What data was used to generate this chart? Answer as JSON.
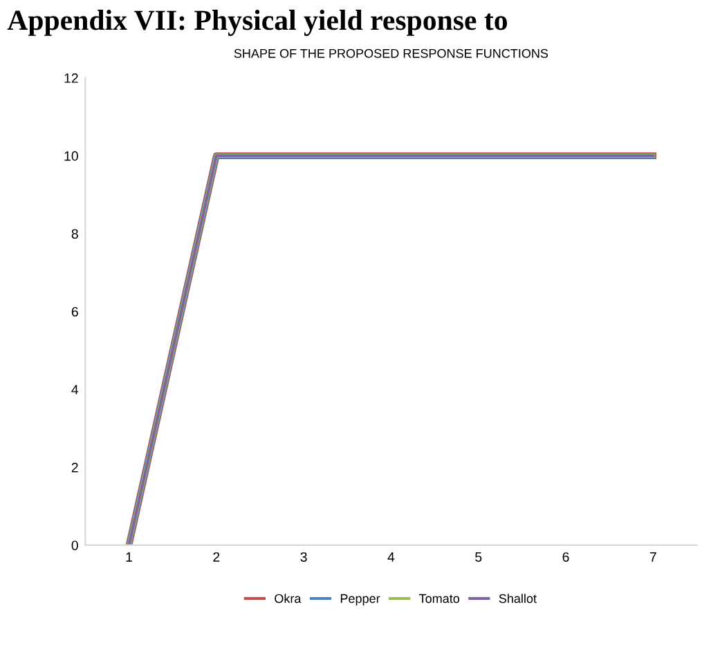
{
  "chart_data": {
    "type": "line",
    "title": "Appendix VII: Physical yield response to",
    "subtitle": "SHAPE OF THE PROPOSED RESPONSE FUNCTIONS",
    "categories": [
      "1",
      "2",
      "3",
      "4",
      "5",
      "6",
      "7"
    ],
    "series": [
      {
        "name": "Okra",
        "color": "#c0504d",
        "values": [
          0,
          10,
          10,
          10,
          10,
          10,
          10
        ]
      },
      {
        "name": "Pepper",
        "color": "#4f81bd",
        "values": [
          0,
          10,
          10,
          10,
          10,
          10,
          10
        ]
      },
      {
        "name": "Tomato",
        "color": "#9bbb59",
        "values": [
          0,
          10,
          10,
          10,
          10,
          10,
          10
        ]
      },
      {
        "name": "Shallot",
        "color": "#8064a2",
        "values": [
          0,
          10,
          10,
          10,
          10,
          10,
          10
        ]
      }
    ],
    "ylim": [
      0,
      12
    ],
    "yticks": [
      0,
      2,
      4,
      6,
      8,
      10,
      12
    ],
    "grid": false,
    "legend": "bottom",
    "marker": "none",
    "line_style": "solid"
  }
}
